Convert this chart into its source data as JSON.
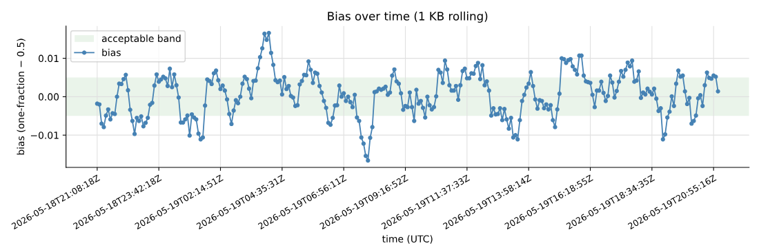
{
  "chart_data": {
    "type": "line",
    "title": "Bias over time (1 KB rolling)",
    "xlabel": "time (UTC)",
    "ylabel": "bias (one-fraction − 0.5)",
    "categories": [
      "2026-05-18T21:08:18Z",
      null,
      null,
      null,
      null,
      null,
      null,
      null,
      null,
      null,
      null,
      null,
      null,
      null,
      null,
      null,
      null,
      null,
      null,
      null,
      null,
      null,
      null,
      null,
      null,
      null,
      null,
      null,
      "2026-05-18T23:42:18Z",
      null,
      null,
      null,
      null,
      null,
      null,
      null,
      null,
      null,
      null,
      null,
      null,
      null,
      null,
      null,
      null,
      null,
      null,
      null,
      null,
      null,
      null,
      null,
      null,
      null,
      null,
      null,
      "2026-05-19T02:14:51Z",
      null,
      null,
      null,
      null,
      null,
      null,
      null,
      null,
      null,
      null,
      null,
      null,
      null,
      null,
      null,
      null,
      null,
      null,
      null,
      null,
      null,
      null,
      null,
      null,
      null,
      null,
      null,
      "2026-05-19T04:35:31Z",
      null,
      null,
      null,
      null,
      null,
      null,
      null,
      null,
      null,
      null,
      null,
      null,
      null,
      null,
      null,
      null,
      null,
      null,
      null,
      null,
      null,
      null,
      null,
      null,
      null,
      null,
      null,
      "2026-05-19T06:56:11Z",
      null,
      null,
      null,
      null,
      null,
      null,
      null,
      null,
      null,
      null,
      null,
      null,
      null,
      null,
      null,
      null,
      null,
      null,
      null,
      null,
      null,
      null,
      null,
      null,
      null,
      null,
      null,
      "2026-05-19T09:16:52Z",
      null,
      null,
      null,
      null,
      null,
      null,
      null,
      null,
      null,
      null,
      null,
      null,
      null,
      null,
      null,
      null,
      null,
      null,
      null,
      null,
      null,
      null,
      null,
      null,
      null,
      null,
      null,
      "2026-05-19T11:37:33Z",
      null,
      null,
      null,
      null,
      null,
      null,
      null,
      null,
      null,
      null,
      null,
      null,
      null,
      null,
      null,
      null,
      null,
      null,
      null,
      null,
      null,
      null,
      null,
      null,
      null,
      null,
      null,
      "2026-05-19T13:58:14Z",
      null,
      null,
      null,
      null,
      null,
      null,
      null,
      null,
      null,
      null,
      null,
      null,
      null,
      null,
      null,
      null,
      null,
      null,
      null,
      null,
      null,
      null,
      null,
      null,
      null,
      null,
      null,
      "2026-05-19T16:18:55Z",
      null,
      null,
      null,
      null,
      null,
      null,
      null,
      null,
      null,
      null,
      null,
      null,
      null,
      null,
      null,
      null,
      null,
      null,
      null,
      null,
      null,
      null,
      null,
      null,
      null,
      null,
      null,
      "2026-05-19T18:34:35Z",
      null,
      null,
      null,
      null,
      null,
      null,
      null,
      null,
      null,
      null,
      null,
      null,
      null,
      null,
      null,
      null,
      null,
      null,
      null,
      null,
      null,
      null,
      null,
      null,
      null,
      null,
      null,
      "2026-05-19T20:55:16Z",
      null,
      null
    ],
    "series": [
      {
        "name": "bias",
        "color": "#4682b4",
        "values": [
          -0.0018,
          -0.002,
          -0.007,
          -0.0079,
          -0.0049,
          -0.0033,
          -0.0059,
          -0.0043,
          -0.0045,
          0.0,
          0.0034,
          0.0033,
          0.0046,
          0.0057,
          0.0017,
          -0.0034,
          -0.0063,
          -0.0097,
          -0.0055,
          -0.0063,
          -0.0051,
          -0.0077,
          -0.0068,
          -0.0055,
          -0.0021,
          -0.0016,
          0.0029,
          0.0058,
          0.0039,
          0.0045,
          0.0052,
          0.0048,
          0.0028,
          0.0073,
          0.0025,
          0.0058,
          0.003,
          -0.0002,
          -0.0067,
          -0.0067,
          -0.0059,
          -0.0049,
          -0.0101,
          -0.0046,
          -0.0054,
          -0.0059,
          -0.0096,
          -0.0111,
          -0.0106,
          -0.0023,
          0.0045,
          0.0041,
          0.0033,
          0.0061,
          0.0068,
          0.0043,
          0.002,
          0.0029,
          0.0016,
          -0.0007,
          -0.0045,
          -0.0071,
          -0.0036,
          -0.0009,
          -0.0017,
          0.0,
          0.0034,
          0.0052,
          0.0046,
          0.0021,
          -0.0004,
          0.0041,
          0.0042,
          0.0074,
          0.0103,
          0.0126,
          0.0164,
          0.0148,
          0.0166,
          0.0114,
          0.0083,
          0.0043,
          0.0038,
          0.0042,
          0.0006,
          0.0051,
          0.002,
          0.0028,
          0.0002,
          -0.0002,
          -0.0024,
          -0.0022,
          0.0032,
          0.0041,
          0.0057,
          0.0056,
          0.0092,
          0.007,
          0.0036,
          0.0063,
          0.006,
          0.0028,
          0.0011,
          -0.0011,
          -0.0029,
          -0.0068,
          -0.0073,
          -0.0055,
          -0.0023,
          -0.0022,
          0.0029,
          0.0,
          0.0009,
          -0.0011,
          0.0,
          -0.0014,
          -0.0027,
          0.0005,
          -0.0054,
          -0.0063,
          -0.0106,
          -0.0122,
          -0.0154,
          -0.0166,
          -0.0107,
          -0.0079,
          0.0012,
          0.0014,
          0.0021,
          0.0018,
          0.0021,
          0.0026,
          0.0005,
          0.0011,
          0.0055,
          0.0071,
          0.004,
          0.0034,
          0.0009,
          -0.0034,
          -0.0024,
          -0.0027,
          0.0011,
          -0.0027,
          -0.0063,
          0.0018,
          -0.0018,
          -0.0011,
          -0.0029,
          -0.0054,
          0.0,
          -0.0022,
          -0.0033,
          -0.0027,
          0.0001,
          0.007,
          0.0063,
          0.0036,
          0.0094,
          0.0071,
          0.003,
          0.0016,
          0.0016,
          0.0028,
          -0.0008,
          0.003,
          0.0067,
          0.0073,
          0.0048,
          0.0048,
          0.0061,
          0.006,
          0.008,
          0.0088,
          0.0046,
          0.0082,
          0.003,
          0.004,
          0.0016,
          -0.0049,
          -0.003,
          -0.0046,
          -0.0045,
          -0.003,
          -0.0061,
          -0.0032,
          -0.0059,
          -0.0083,
          -0.0055,
          -0.0106,
          -0.01,
          -0.0111,
          -0.0061,
          -0.0011,
          0.0005,
          0.0024,
          0.0034,
          0.0064,
          0.0028,
          -0.0007,
          -0.0031,
          -0.0009,
          -0.0011,
          -0.003,
          -0.002,
          -0.0033,
          -0.0022,
          -0.0061,
          -0.0079,
          -0.0033,
          0.0008,
          0.01,
          0.0098,
          0.0088,
          0.0095,
          0.0098,
          0.0079,
          0.007,
          0.0058,
          0.0107,
          0.0107,
          0.0055,
          0.004,
          0.0038,
          0.0036,
          0.0005,
          -0.0027,
          0.0016,
          0.0016,
          0.0039,
          0.001,
          -0.0011,
          0.0002,
          0.0055,
          0.0037,
          -0.0002,
          0.0015,
          0.0039,
          0.0067,
          0.0052,
          0.007,
          0.0089,
          0.0079,
          0.0094,
          0.0039,
          0.0042,
          0.0066,
          -0.0003,
          0.0011,
          0.0006,
          0.0021,
          0.0013,
          0.0006,
          0.0021,
          -0.0005,
          -0.0037,
          -0.003,
          -0.0111,
          -0.0098,
          -0.0054,
          -0.0039,
          0.0001,
          -0.0024,
          0.0034,
          0.0068,
          0.0052,
          0.0055,
          0.0014,
          -0.0019,
          -0.0003,
          -0.007,
          -0.0063,
          -0.0049,
          -0.0004,
          0.0004,
          -0.0024,
          0.003,
          0.0063,
          0.0049,
          0.0047,
          0.0055,
          0.0052,
          0.0014
        ]
      }
    ],
    "bands": [
      {
        "axis": "y",
        "from": -0.005,
        "to": 0.005,
        "label": "acceptable band",
        "color": "#eaf4ea"
      }
    ],
    "ylim": [
      -0.0184,
      0.0184
    ],
    "yticks": [
      {
        "value": -0.01,
        "label": "−0.01"
      },
      {
        "value": 0,
        "label": "0.00"
      },
      {
        "value": 0.01,
        "label": "0.01"
      }
    ],
    "grid": true,
    "legend": "top left",
    "marker": "circle",
    "line_style": "solid"
  }
}
